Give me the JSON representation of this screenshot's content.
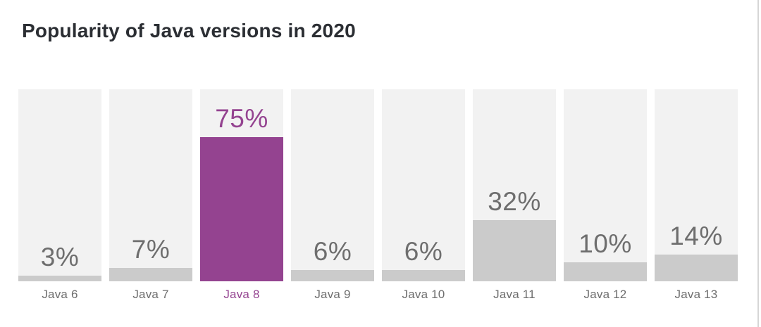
{
  "header": {
    "title": "Popularity of Java versions in 2020"
  },
  "window": {
    "right_edge_line_color": "#d6d6d6"
  },
  "chart_data": {
    "type": "bar",
    "title": "Popularity of Java versions in 2020",
    "categories": [
      "Java 6",
      "Java 7",
      "Java 8",
      "Java 9",
      "Java 10",
      "Java 11",
      "Java 12",
      "Java 13"
    ],
    "values": [
      3,
      7,
      75,
      6,
      6,
      32,
      10,
      14
    ],
    "value_labels": [
      "3%",
      "7%",
      "75%",
      "6%",
      "6%",
      "32%",
      "10%",
      "14%"
    ],
    "unit": "%",
    "xlabel": "",
    "ylabel": "",
    "ylim": [
      0,
      100
    ],
    "grid": false,
    "legend": false,
    "axes_hidden": true,
    "highlight_category": "Java 8",
    "colors": {
      "bar_default": "#cbcbcb",
      "bar_highlight": "#944390",
      "column_track_background": "#f2f2f2",
      "value_label_default": "#6e6e6e",
      "value_label_highlight": "#944390",
      "category_label_default": "#6d6d6d",
      "category_label_highlight": "#944390",
      "title_color": "#2b2e33"
    }
  }
}
